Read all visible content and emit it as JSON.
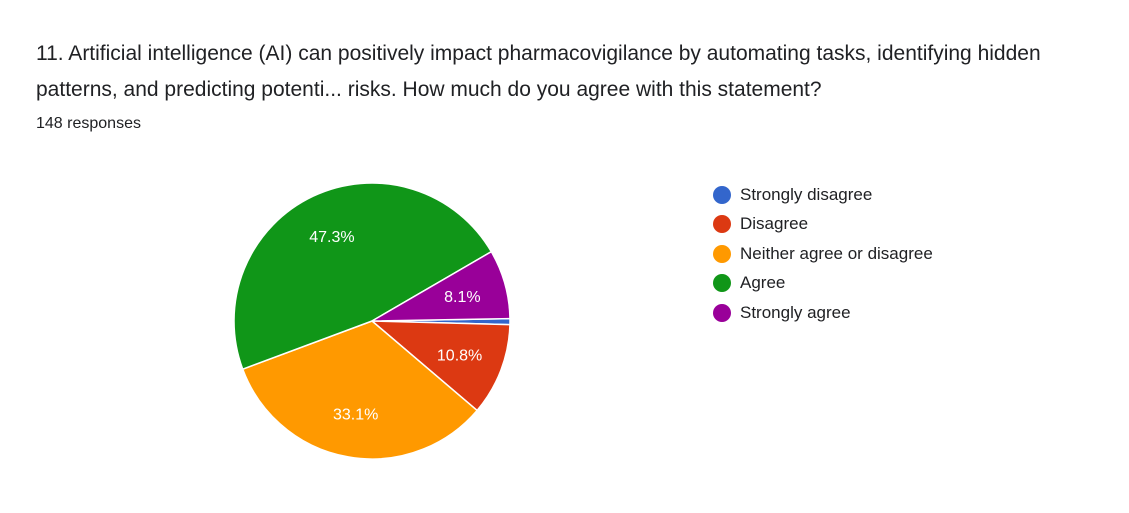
{
  "question": {
    "title": "11. Artificial intelligence (AI) can positively impact pharmacovigilance by automating tasks, identifying hidden patterns, and predicting potenti... risks. How much do you agree with this statement?",
    "responses": "148 responses"
  },
  "chart_data": {
    "type": "pie",
    "title": "11. Artificial intelligence (AI) can positively impact pharmacovigilance by automating tasks, identifying hidden patterns, and predicting potenti... risks. How much do you agree with this statement?",
    "categories": [
      "Strongly disagree",
      "Disagree",
      "Neither agree or disagree",
      "Agree",
      "Strongly agree"
    ],
    "values": [
      0.7,
      10.8,
      33.1,
      47.3,
      8.1
    ],
    "data_labels": [
      "",
      "10.8%",
      "33.1%",
      "47.3%",
      "8.1%"
    ],
    "colors": [
      "#3366cc",
      "#dc3912",
      "#ff9900",
      "#109618",
      "#990099"
    ],
    "legend_position": "right"
  }
}
